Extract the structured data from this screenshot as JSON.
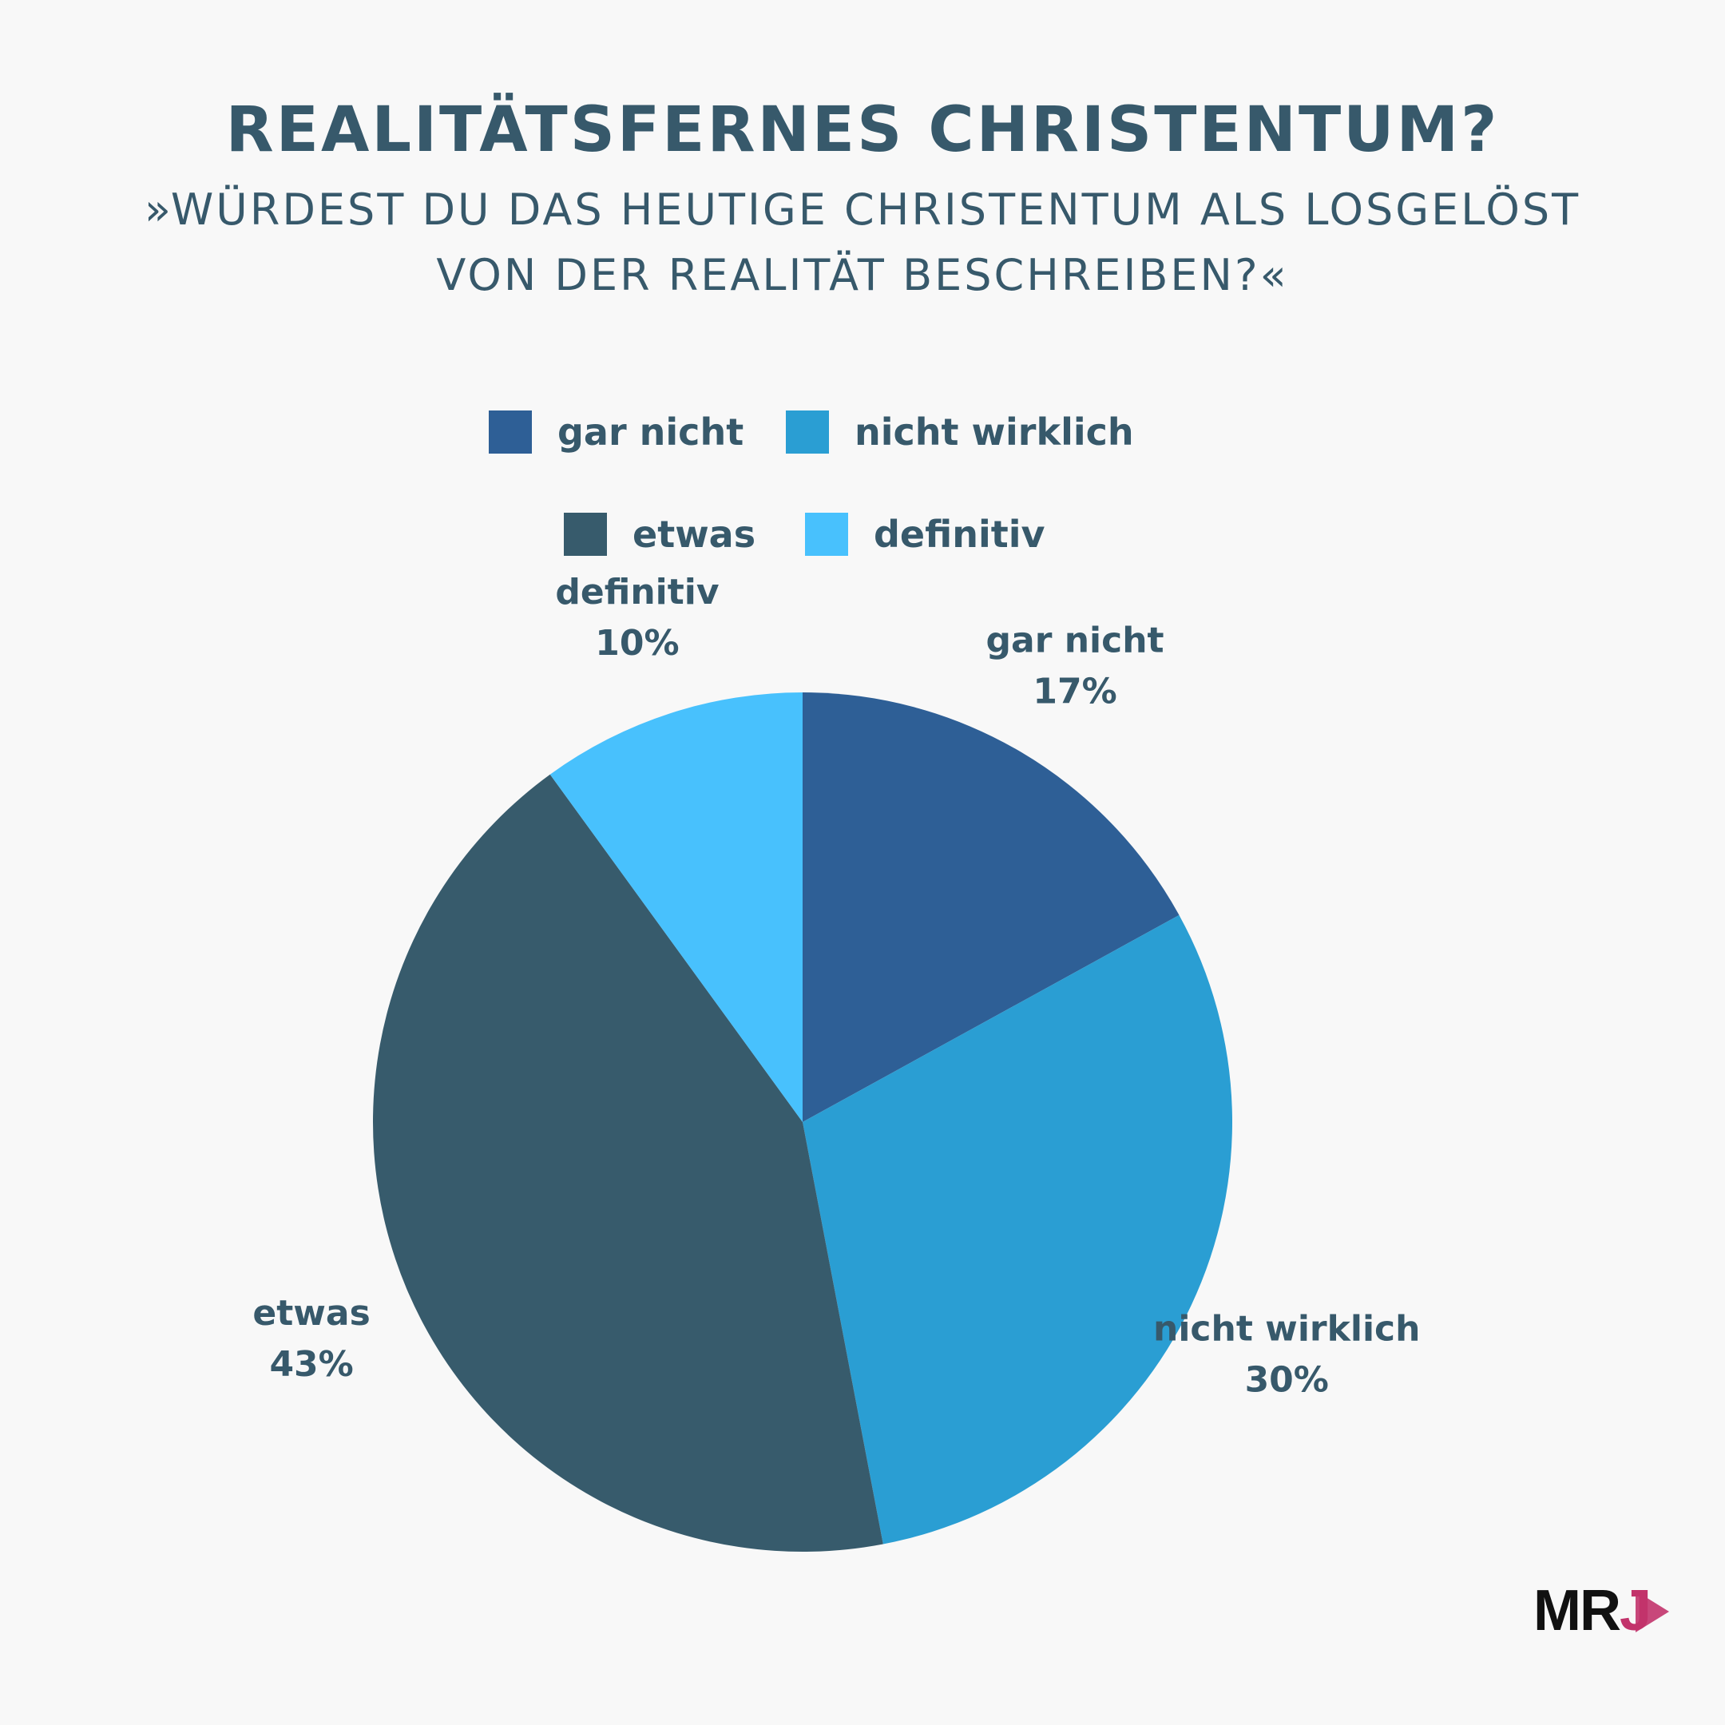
{
  "title": "REALITÄTSFERNES CHRISTENTUM?",
  "subtitle": {
    "line1": "»WÜRDEST DU DAS HEUTIGE CHRISTENTUM ALS LOSGELÖST",
    "line2": "VON DER REALITÄT BESCHREIBEN?«"
  },
  "logo": {
    "text_main": "MR",
    "text_accent": "J"
  },
  "chart_data": {
    "type": "pie",
    "title": "REALITÄTSFERNES CHRISTENTUM?",
    "legend_placement": "top-center",
    "slices": [
      {
        "label": "gar nicht",
        "value": 17,
        "value_label": "17%",
        "color": "#2e5f96"
      },
      {
        "label": "nicht wirklich",
        "value": 30,
        "value_label": "30%",
        "color": "#2a9ed3"
      },
      {
        "label": "etwas",
        "value": 43,
        "value_label": "43%",
        "color": "#375b6c"
      },
      {
        "label": "definitiv",
        "value": 10,
        "value_label": "10%",
        "color": "#48c1fd"
      }
    ]
  }
}
